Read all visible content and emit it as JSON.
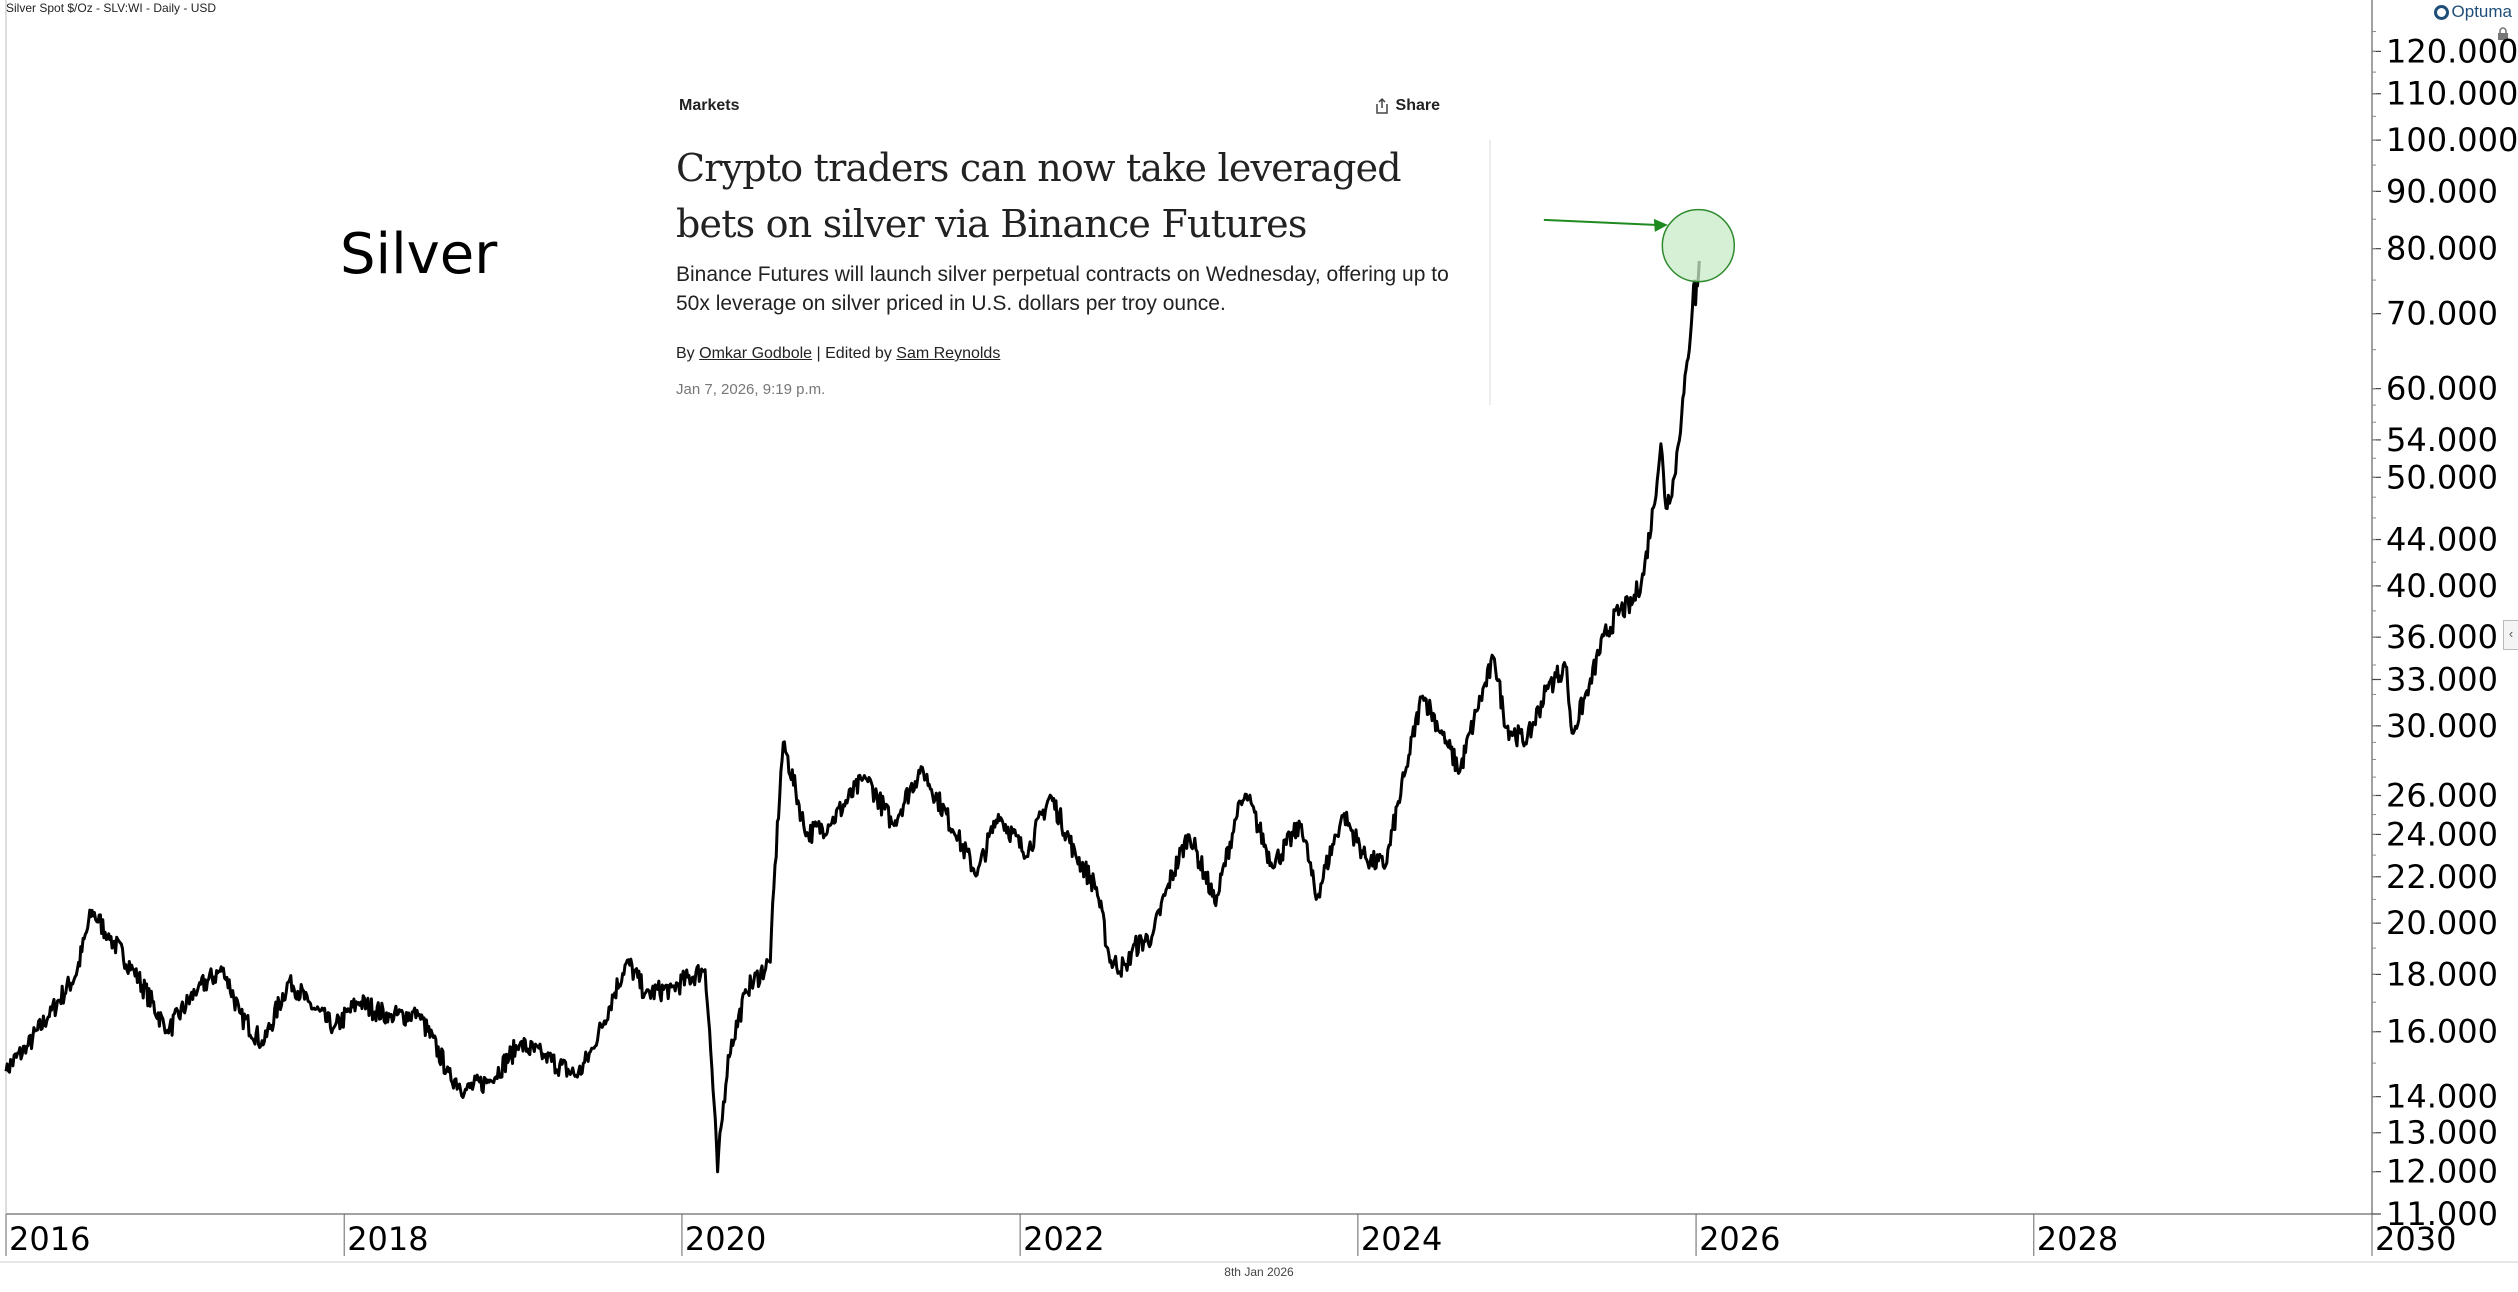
{
  "header": {
    "title": "Silver Spot $/Oz - SLV:WI - Daily - USD",
    "brand": "Optuma",
    "footer_date": "8th Jan 2026"
  },
  "overlay_label": "Silver",
  "article": {
    "section": "Markets",
    "share_label": "Share",
    "headline": "Crypto traders can now take leveraged bets on silver via Binance Futures",
    "dek": "Binance Futures will launch silver perpetual contracts on Wednesday, offering up to 50x leverage on silver priced in U.S. dollars per troy ounce.",
    "byline_prefix": "By",
    "author": "Omkar Godbole",
    "editor_prefix": "| Edited by",
    "editor": "Sam Reynolds",
    "date": "Jan 7, 2026, 9:19 p.m."
  },
  "colors": {
    "line": "#000000",
    "highlight_fill": "#c8ebc8",
    "highlight_stroke": "#2e8b2e",
    "arrow": "#1f8a1f",
    "axis": "#444444"
  },
  "chart_data": {
    "type": "line",
    "title": "Silver Spot $/Oz - SLV:WI - Daily - USD",
    "xlabel": "",
    "ylabel": "",
    "y_scale": "log",
    "ylim": [
      11,
      128
    ],
    "xlim": [
      "2016-01-01",
      "2030-01-01"
    ],
    "x_tick_labels": [
      "2016",
      "2018",
      "2020",
      "2022",
      "2024",
      "2026",
      "2028",
      "2030"
    ],
    "y_tick_labels": [
      "11.000",
      "12.000",
      "13.000",
      "14.000",
      "16.000",
      "18.000",
      "20.000",
      "22.000",
      "24.000",
      "26.000",
      "30.000",
      "33.000",
      "36.000",
      "40.000",
      "44.000",
      "50.000",
      "54.000",
      "60.000",
      "70.000",
      "80.000",
      "90.000",
      "100.000",
      "110.000",
      "120.000"
    ],
    "series": [
      {
        "x": [
          "2016-01-01",
          "2016-02-15",
          "2016-04-01",
          "2016-06-01",
          "2016-07-05",
          "2016-08-10",
          "2016-10-01",
          "2016-12-15",
          "2017-02-20",
          "2017-04-15",
          "2017-05-20",
          "2017-07-10",
          "2017-09-05",
          "2017-10-15",
          "2017-12-10",
          "2018-02-01",
          "2018-04-10",
          "2018-06-10",
          "2018-08-15",
          "2018-09-20",
          "2018-11-15",
          "2019-01-15",
          "2019-03-10",
          "2019-05-20",
          "2019-06-25",
          "2019-09-05",
          "2019-10-15",
          "2019-12-10",
          "2020-02-20",
          "2020-03-18",
          "2020-04-10",
          "2020-05-20",
          "2020-07-10",
          "2020-08-07",
          "2020-09-25",
          "2020-11-15",
          "2021-02-01",
          "2021-04-01",
          "2021-06-01",
          "2021-08-15",
          "2021-09-30",
          "2021-11-15",
          "2022-01-15",
          "2022-03-07",
          "2022-05-01",
          "2022-06-15",
          "2022-07-14",
          "2022-08-20",
          "2022-09-01",
          "2022-10-15",
          "2022-11-15",
          "2023-01-01",
          "2023-02-28",
          "2023-04-15",
          "2023-05-05",
          "2023-06-30",
          "2023-09-01",
          "2023-10-03",
          "2023-11-30",
          "2024-01-20",
          "2024-03-01",
          "2024-04-15",
          "2024-05-20",
          "2024-07-10",
          "2024-08-08",
          "2024-09-15",
          "2024-10-22",
          "2024-11-15",
          "2024-12-30",
          "2025-02-15",
          "2025-03-25",
          "2025-04-08",
          "2025-05-15",
          "2025-06-15",
          "2025-07-20",
          "2025-08-15",
          "2025-09-10",
          "2025-10-01",
          "2025-10-17",
          "2025-10-28",
          "2025-11-15",
          "2025-12-01",
          "2025-12-15",
          "2025-12-29",
          "2025-12-31",
          "2026-01-08"
        ],
        "values": [
          14.8,
          15.5,
          16.5,
          18.0,
          20.5,
          19.5,
          18.2,
          16.0,
          17.5,
          18.2,
          16.6,
          15.6,
          17.8,
          17.0,
          16.1,
          17.0,
          16.5,
          16.6,
          14.7,
          14.2,
          14.5,
          15.6,
          15.2,
          14.6,
          15.5,
          18.5,
          17.3,
          17.5,
          18.2,
          12.0,
          15.2,
          17.4,
          18.5,
          29.0,
          24.0,
          24.5,
          27.0,
          24.5,
          27.5,
          24.0,
          22.1,
          25.0,
          23.0,
          26.0,
          23.0,
          21.5,
          18.5,
          18.2,
          19.0,
          19.5,
          21.5,
          24.0,
          20.8,
          25.0,
          26.0,
          22.5,
          24.5,
          21.0,
          25.0,
          22.8,
          22.5,
          27.5,
          32.0,
          29.0,
          27.3,
          31.0,
          34.5,
          30.0,
          29.0,
          32.5,
          34.0,
          29.5,
          32.5,
          36.0,
          38.0,
          38.5,
          41.0,
          47.0,
          53.5,
          47.0,
          50.0,
          57.0,
          64.0,
          75.0,
          71.5,
          78.0
        ]
      }
    ],
    "annotations": [
      {
        "type": "circle",
        "x": "2026-01-08",
        "y": 80.5
      },
      {
        "type": "arrow",
        "to_x": "2025-11-01",
        "to_y": 84.0
      }
    ]
  }
}
